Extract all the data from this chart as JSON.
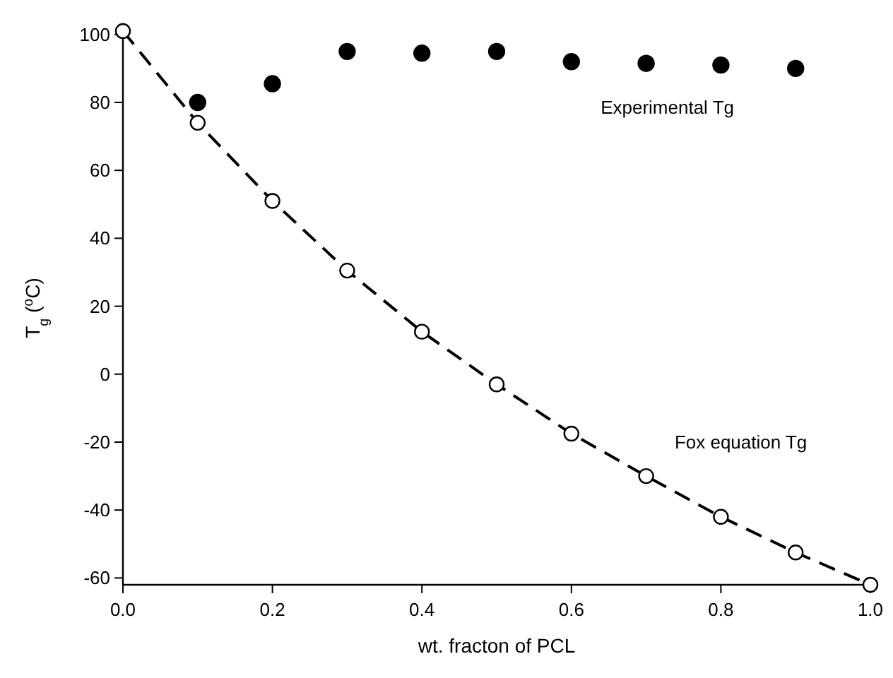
{
  "chart_data": {
    "type": "scatter",
    "xlabel": "wt. fracton of PCL",
    "ylabel": "T$_{g}$ ($^{o}$C)",
    "xlim": [
      0,
      1
    ],
    "ylim": [
      -62,
      101
    ],
    "xticks": [
      {
        "value": 0,
        "label": "0.0"
      },
      {
        "value": 0.2,
        "label": "0.2"
      },
      {
        "value": 0.4,
        "label": "0.4"
      },
      {
        "value": 0.6,
        "label": "0.6"
      },
      {
        "value": 0.8,
        "label": "0.8"
      },
      {
        "value": 1,
        "label": "1.0"
      }
    ],
    "yticks": [
      -60,
      -40,
      -20,
      0,
      20,
      40,
      60,
      80,
      100
    ],
    "grid": false,
    "series": [
      {
        "name": "Experimental Tg",
        "color": "#000000",
        "marker": "circle",
        "x": [
          0.1,
          0.2,
          0.3,
          0.4,
          0.5,
          0.6,
          0.7,
          0.8,
          0.9
        ],
        "values": [
          80,
          85.5,
          95,
          94.5,
          95,
          92,
          91.5,
          91,
          90
        ]
      },
      {
        "name": "Fox equation Tg",
        "type": "line",
        "color": "#000000",
        "marker": "circle",
        "line_style": "dashed",
        "x": [
          0,
          0.1,
          0.2,
          0.3,
          0.4,
          0.5,
          0.6,
          0.7,
          0.8,
          0.9,
          1
        ],
        "values": [
          101,
          74,
          51,
          30.5,
          12.5,
          -3,
          -17.5,
          -30,
          -42,
          -52.5,
          -62
        ]
      }
    ]
  }
}
